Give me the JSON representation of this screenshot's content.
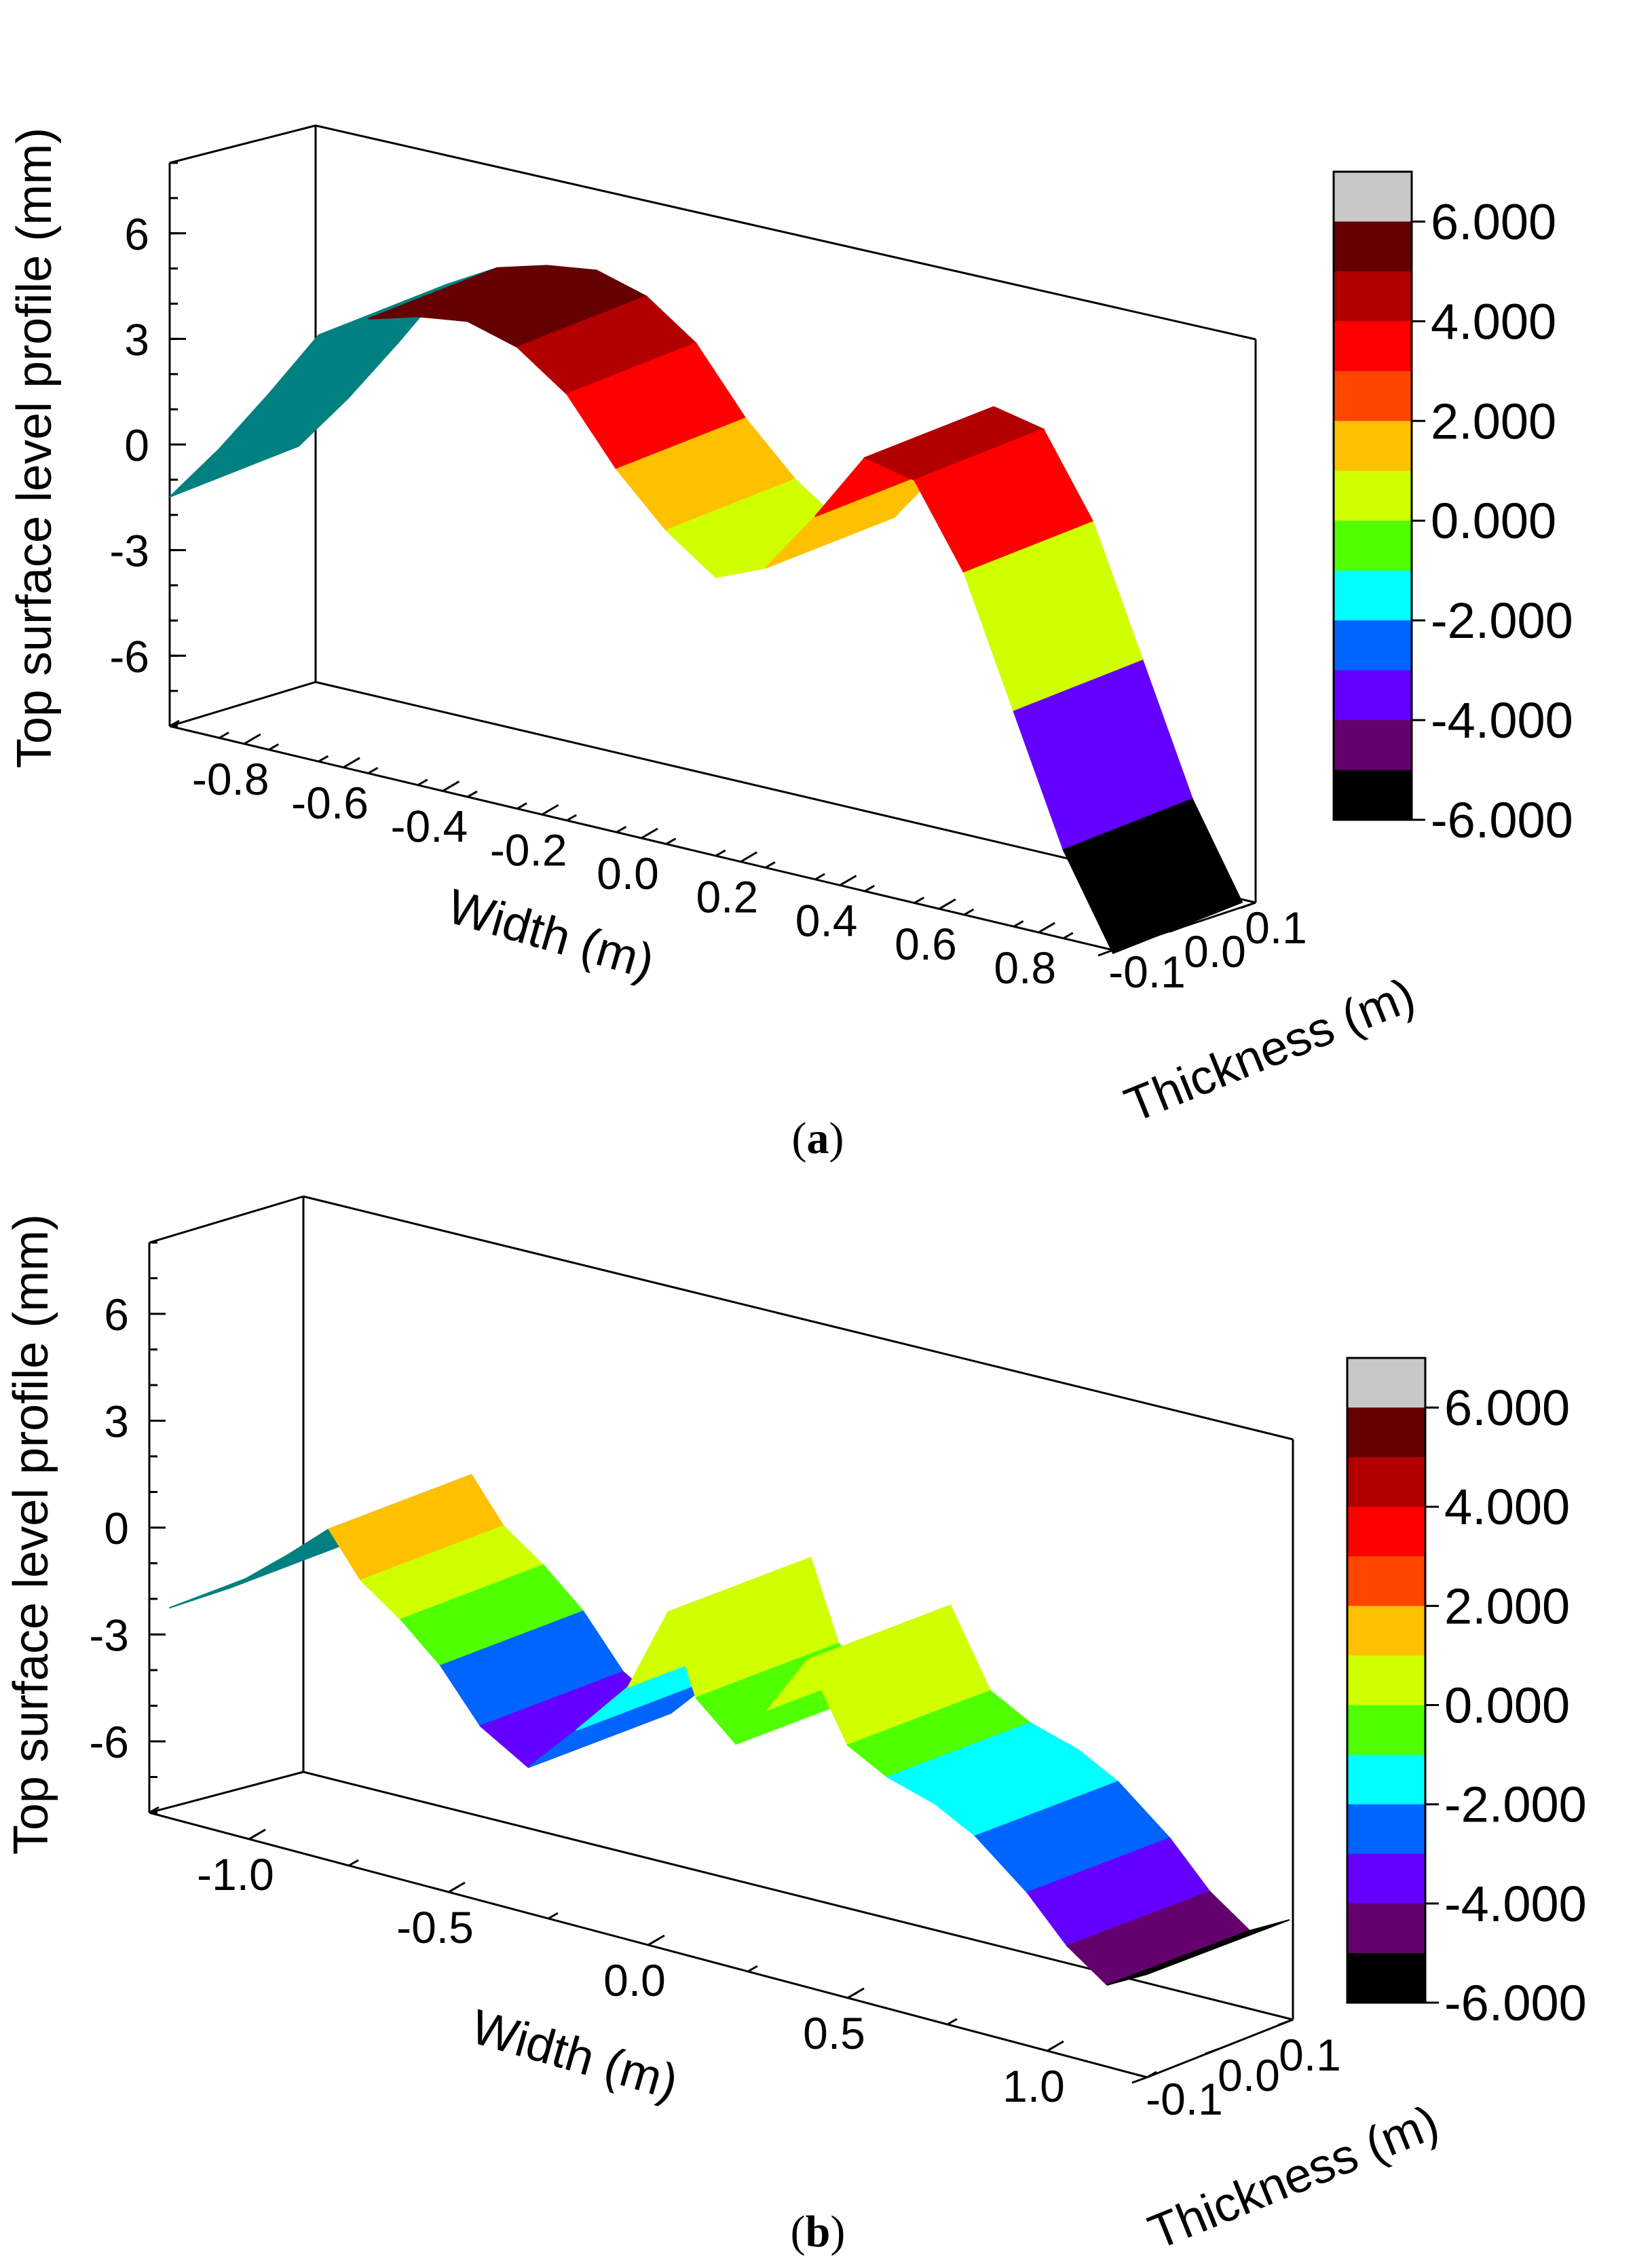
{
  "chart_data": [
    {
      "id": "a",
      "type": "surface3d",
      "caption_open": "(",
      "caption_letter": "a",
      "caption_close": ")",
      "zlabel": "Top surface level profile (mm)",
      "xlabel": "Width (m)",
      "ylabel": "Thickness (m)",
      "z_ticks": [
        "6",
        "3",
        "0",
        "-3",
        "-6"
      ],
      "x_ticks": [
        "-0.8",
        "-0.6",
        "-0.4",
        "-0.2",
        "0.0",
        "0.2",
        "0.4",
        "0.6",
        "0.8"
      ],
      "y_ticks": [
        "-0.1",
        "0.0",
        "0.1"
      ],
      "zlim": [
        -8,
        8
      ],
      "xlim": [
        -0.95,
        0.95
      ],
      "profile": {
        "x": [
          -0.95,
          -0.85,
          -0.75,
          -0.65,
          -0.55,
          -0.45,
          -0.35,
          -0.25,
          -0.15,
          -0.05,
          0.05,
          0.15,
          0.25,
          0.35,
          0.45,
          0.55,
          0.65,
          0.75,
          0.85,
          0.95
        ],
        "z": [
          -1.2,
          0.5,
          2.4,
          4.4,
          5.2,
          5.6,
          5.8,
          5.4,
          4.4,
          2.6,
          1.2,
          0.2,
          0.8,
          2.6,
          4.6,
          4.3,
          2.0,
          -1.6,
          -5.2,
          -7.8
        ]
      },
      "legend": {
        "labels": [
          "6.000",
          "4.000",
          "2.000",
          "0.000",
          "-2.000",
          "-4.000",
          "-6.000"
        ],
        "colors": [
          "#c8c8c8",
          "#650000",
          "#b20000",
          "#ff0000",
          "#ff4500",
          "#ffc000",
          "#d0ff00",
          "#50ff00",
          "#00ffff",
          "#0064ff",
          "#6400ff",
          "#64006e",
          "#000000"
        ]
      }
    },
    {
      "id": "b",
      "type": "surface3d",
      "caption_open": "(",
      "caption_letter": "b",
      "caption_close": ")",
      "zlabel": "Top surface level profile (mm)",
      "xlabel": "Width (m)",
      "ylabel": "Thickness (m)",
      "z_ticks": [
        "6",
        "3",
        "0",
        "-3",
        "-6"
      ],
      "x_ticks": [
        "-1.0",
        "-0.5",
        "0.0",
        "0.5",
        "1.0"
      ],
      "y_ticks": [
        "-0.1",
        "0.0",
        "0.1"
      ],
      "zlim": [
        -8,
        8
      ],
      "xlim": [
        -1.25,
        1.25
      ],
      "profile": {
        "x": [
          -1.2,
          -1.05,
          -0.9,
          -0.8,
          -0.72,
          -0.62,
          -0.52,
          -0.42,
          -0.3,
          -0.18,
          -0.05,
          0.05,
          0.12,
          0.22,
          0.3,
          0.4,
          0.5,
          0.6,
          0.72,
          0.82,
          0.95,
          1.05,
          1.15,
          1.25
        ],
        "z": [
          -1.8,
          -0.8,
          0.6,
          1.6,
          0.4,
          -0.4,
          -1.4,
          -2.8,
          -3.6,
          -2.2,
          -0.6,
          1.8,
          -0.4,
          -1.4,
          -0.2,
          1.5,
          -0.6,
          -1.2,
          -1.6,
          -2.2,
          -3.4,
          -4.6,
          -5.4,
          -4.8
        ]
      },
      "legend": {
        "labels": [
          "6.000",
          "4.000",
          "2.000",
          "0.000",
          "-2.000",
          "-4.000",
          "-6.000"
        ],
        "colors": [
          "#c8c8c8",
          "#650000",
          "#b20000",
          "#ff0000",
          "#ff4500",
          "#ffc000",
          "#d0ff00",
          "#50ff00",
          "#00ffff",
          "#0064ff",
          "#6400ff",
          "#64006e",
          "#000000"
        ]
      }
    }
  ]
}
